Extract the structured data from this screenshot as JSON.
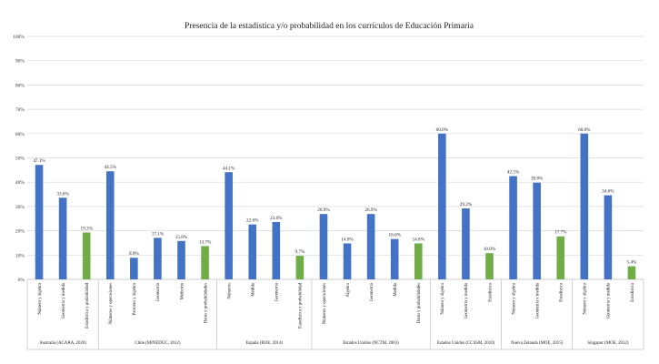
{
  "chart_data": {
    "type": "bar",
    "title": "Presencia de la estadística y/o probabilidad en los currículos de Educación Primaria",
    "ylim": [
      0,
      100
    ],
    "yticks": [
      "0%",
      "10%",
      "20%",
      "30%",
      "40%",
      "50%",
      "60%",
      "70%",
      "80%",
      "90%",
      "100%"
    ],
    "grid": true,
    "colors": {
      "blue": "#4472c4",
      "green": "#70ad47"
    },
    "groups": [
      {
        "name": "Australia (ACARA, 2020)",
        "bars": [
          {
            "label": "Número y álgebra",
            "value": 47.1,
            "value_label": "47.1%",
            "color": "blue"
          },
          {
            "label": "Geometría y medida",
            "value": 33.6,
            "value_label": "33.6%",
            "color": "blue"
          },
          {
            "label": "Estadística y probabilidad",
            "value": 19.3,
            "value_label": "19.3%",
            "color": "green"
          }
        ]
      },
      {
        "name": "Chile (MINEDUC, 2012)",
        "bars": [
          {
            "label": "Números y operaciones",
            "value": 44.5,
            "value_label": "44.5%",
            "color": "blue"
          },
          {
            "label": "Patrones y álgebra",
            "value": 8.9,
            "value_label": "8.9%",
            "color": "blue"
          },
          {
            "label": "Geometría",
            "value": 17.1,
            "value_label": "17.1%",
            "color": "blue"
          },
          {
            "label": "Medición",
            "value": 15.8,
            "value_label": "15.8%",
            "color": "blue"
          },
          {
            "label": "Datos y probabilidades",
            "value": 13.7,
            "value_label": "13.7%",
            "color": "green"
          }
        ]
      },
      {
        "name": "España (BOE, 2014)",
        "bars": [
          {
            "label": "Números",
            "value": 44.1,
            "value_label": "44.1%",
            "color": "blue"
          },
          {
            "label": "Medida",
            "value": 22.6,
            "value_label": "22.6%",
            "color": "blue"
          },
          {
            "label": "Geometría",
            "value": 23.6,
            "value_label": "23.6%",
            "color": "blue"
          },
          {
            "label": "Estadística y probabilidad",
            "value": 9.7,
            "value_label": "9.7%",
            "color": "green"
          }
        ]
      },
      {
        "name": "Estados Unidos (NCTM, 2003)",
        "bars": [
          {
            "label": "Números y operaciones",
            "value": 26.9,
            "value_label": "26.9%",
            "color": "blue"
          },
          {
            "label": "Álgebra",
            "value": 14.8,
            "value_label": "14.8%",
            "color": "blue"
          },
          {
            "label": "Geometría",
            "value": 26.9,
            "value_label": "26.9%",
            "color": "blue"
          },
          {
            "label": "Medida",
            "value": 16.6,
            "value_label": "16.6%",
            "color": "blue"
          },
          {
            "label": "Datos y probabilidades",
            "value": 14.8,
            "value_label": "14.8%",
            "color": "green"
          }
        ]
      },
      {
        "name": "Estados Unidos (CCSSM, 2010)",
        "bars": [
          {
            "label": "Número y álgebra",
            "value": 60.0,
            "value_label": "60.0%",
            "color": "blue"
          },
          {
            "label": "Geometría y medida",
            "value": 29.2,
            "value_label": "29.2%",
            "color": "blue"
          },
          {
            "label": "Estadística",
            "value": 10.8,
            "value_label": "10.8%",
            "color": "green"
          }
        ]
      },
      {
        "name": "Nueva Zelanda (MOE, 2015)",
        "bars": [
          {
            "label": "Número y álgebra",
            "value": 42.5,
            "value_label": "42.5%",
            "color": "blue"
          },
          {
            "label": "Geometría y medida",
            "value": 39.8,
            "value_label": "39.8%",
            "color": "blue"
          },
          {
            "label": "Estadística",
            "value": 17.7,
            "value_label": "17.7%",
            "color": "green"
          }
        ]
      },
      {
        "name": "Singapur (MOE, 2012)",
        "bars": [
          {
            "label": "Número y álgebra",
            "value": 60.0,
            "value_label": "60.0%",
            "color": "blue"
          },
          {
            "label": "Geometría y medida",
            "value": 34.6,
            "value_label": "34.6%",
            "color": "blue"
          },
          {
            "label": "Estadística",
            "value": 5.4,
            "value_label": "5.4%",
            "color": "green"
          }
        ]
      }
    ]
  }
}
